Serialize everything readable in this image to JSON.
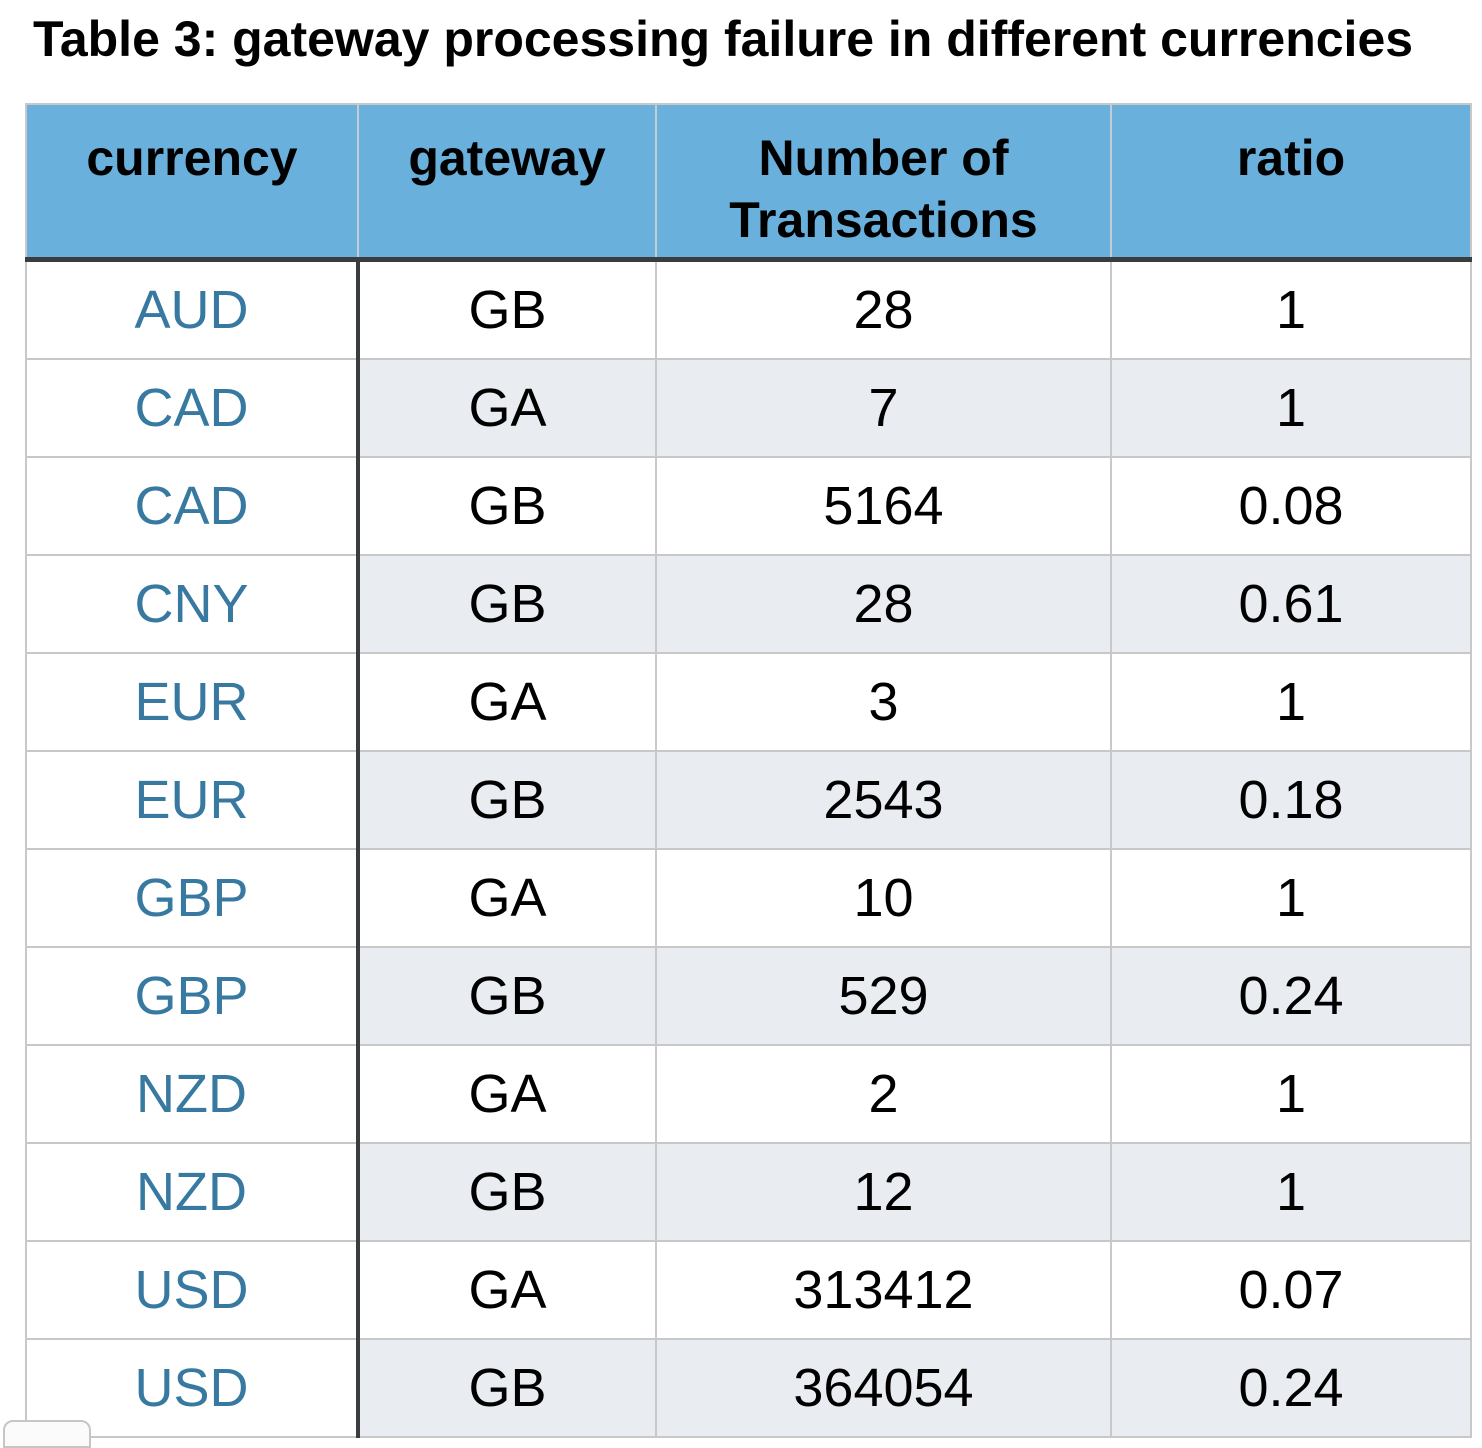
{
  "title": "Table 3: gateway processing failure in different currencies",
  "colors": {
    "header_bg": "#69b0dc",
    "stripe_bg": "#e9edf2",
    "currency_text": "#3779a1",
    "dark_border": "#3a3d3f",
    "light_border": "#c8c8c8"
  },
  "chart_data": {
    "type": "table",
    "title": "Table 3: gateway processing failure in different currencies",
    "columns": [
      "currency",
      "gateway",
      "Number of Transactions",
      "ratio"
    ],
    "rows": [
      [
        "AUD",
        "GB",
        "28",
        "1"
      ],
      [
        "CAD",
        "GA",
        "7",
        "1"
      ],
      [
        "CAD",
        "GB",
        "5164",
        "0.08"
      ],
      [
        "CNY",
        "GB",
        "28",
        "0.61"
      ],
      [
        "EUR",
        "GA",
        "3",
        "1"
      ],
      [
        "EUR",
        "GB",
        "2543",
        "0.18"
      ],
      [
        "GBP",
        "GA",
        "10",
        "1"
      ],
      [
        "GBP",
        "GB",
        "529",
        "0.24"
      ],
      [
        "NZD",
        "GA",
        "2",
        "1"
      ],
      [
        "NZD",
        "GB",
        "12",
        "1"
      ],
      [
        "USD",
        "GA",
        "313412",
        "0.07"
      ],
      [
        "USD",
        "GB",
        "364054",
        "0.24"
      ]
    ],
    "layout": {
      "striped_rows": "even rows shaded except first column",
      "header_position": "top",
      "alignment": "center"
    }
  }
}
